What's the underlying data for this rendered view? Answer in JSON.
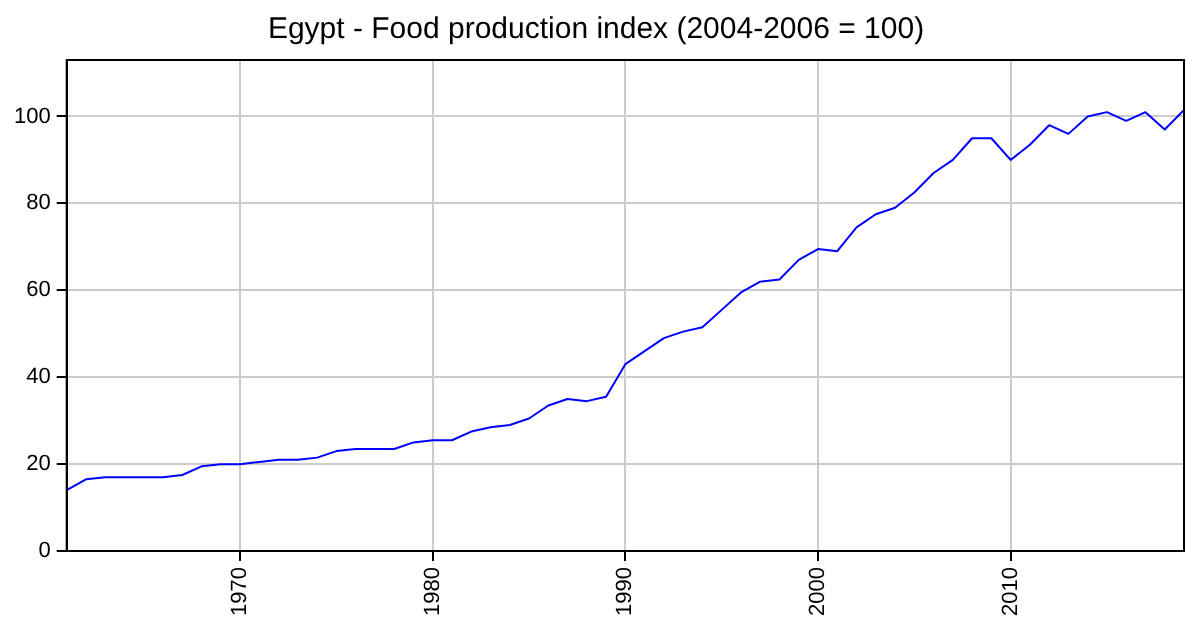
{
  "chart_data": {
    "type": "line",
    "title": "Egypt - Food production index (2004-2006 = 100)",
    "x": [
      1961,
      1962,
      1963,
      1964,
      1965,
      1966,
      1967,
      1968,
      1969,
      1970,
      1971,
      1972,
      1973,
      1974,
      1975,
      1976,
      1977,
      1978,
      1979,
      1980,
      1981,
      1982,
      1983,
      1984,
      1985,
      1986,
      1987,
      1988,
      1989,
      1990,
      1991,
      1992,
      1993,
      1994,
      1995,
      1996,
      1997,
      1998,
      1999,
      2000,
      2001,
      2002,
      2003,
      2004,
      2005,
      2006,
      2007,
      2008,
      2009,
      2010,
      2011,
      2012,
      2013,
      2014,
      2015,
      2016,
      2017,
      2018,
      2019
    ],
    "series": [
      {
        "color": "#0000ff",
        "values": [
          14,
          16.5,
          17,
          17,
          17,
          17,
          17.5,
          19.5,
          20,
          20,
          20.5,
          21,
          21,
          21.5,
          23,
          23.5,
          23.5,
          23.5,
          25,
          25.5,
          25.5,
          27.5,
          28.5,
          29,
          30.5,
          33.5,
          35,
          34.5,
          35.5,
          43,
          46,
          49,
          50.5,
          51.5,
          55.5,
          59.5,
          62,
          62.5,
          67,
          69.5,
          69,
          74.5,
          77.5,
          79,
          82.5,
          87,
          90,
          95,
          95,
          90,
          93.5,
          98,
          96,
          100,
          101,
          99,
          101,
          97,
          101.5
        ]
      }
    ],
    "xlim": [
      1961,
      2019
    ],
    "xticks": [
      {
        "value": 1970,
        "label": "1970"
      },
      {
        "value": 1980,
        "label": "1980"
      },
      {
        "value": 1990,
        "label": "1990"
      },
      {
        "value": 2000,
        "label": "2000"
      },
      {
        "value": 2010,
        "label": "2010"
      }
    ],
    "ylim": [
      0,
      113
    ],
    "yticks": [
      0,
      20,
      40,
      60,
      80,
      100
    ],
    "grid": true,
    "marker": "none",
    "line_style": "solid"
  }
}
